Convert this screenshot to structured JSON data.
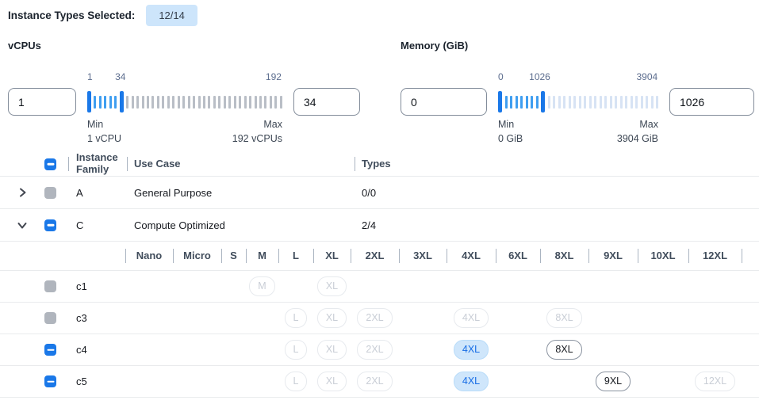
{
  "header": {
    "label": "Instance Types Selected:",
    "badge": "12/14"
  },
  "colors": {
    "accent_blue": "#1a78e8",
    "badge_bg": "#cde5fb",
    "selected_pill_bg": "#cfe6fb",
    "selected_pill_text": "#176de5",
    "disabled_gray": "#b0b5bd"
  },
  "filters": [
    {
      "id": "vcpus",
      "title": "vCPUs",
      "min_value": "1",
      "max_value": "34",
      "min_label": "Min",
      "min_detail": "1 vCPU",
      "max_label": "Max",
      "max_detail": "192 vCPUs",
      "scale_labels": [
        {
          "text": "1",
          "pos": 0
        },
        {
          "text": "34",
          "pos": 17
        },
        {
          "text": "192",
          "pos": 95.5
        }
      ],
      "slider": {
        "total_ticks": 38,
        "handle_low": 0,
        "handle_high": 6,
        "in_range_color": "#3f9ef0",
        "out_range_color": "#b9bec6"
      }
    },
    {
      "id": "memory",
      "title": "Memory (GiB)",
      "min_value": "0",
      "max_value": "1026",
      "min_label": "Min",
      "min_detail": "0 GiB",
      "max_label": "Max",
      "max_detail": "3904 GiB",
      "scale_labels": [
        {
          "text": "0",
          "pos": 0
        },
        {
          "text": "1026",
          "pos": 26
        },
        {
          "text": "3904",
          "pos": 93
        }
      ],
      "slider": {
        "total_ticks": 31,
        "handle_low": 0,
        "handle_high": 8,
        "in_range_color": "#3f9ef0",
        "out_range_color": "#d7e3f4"
      }
    }
  ],
  "table": {
    "columns": {
      "family": "Instance Family",
      "use_case": "Use Case",
      "types": "Types"
    },
    "header_checkbox": "indeterminate",
    "sizes": [
      "Nano",
      "Micro",
      "S",
      "M",
      "L",
      "XL",
      "2XL",
      "3XL",
      "4XL",
      "6XL",
      "8XL",
      "9XL",
      "10XL",
      "12XL"
    ],
    "families": [
      {
        "name": "A",
        "use_case": "General Purpose",
        "types": "0/0",
        "expanded": false,
        "checkbox": "disabled",
        "instances": []
      },
      {
        "name": "C",
        "use_case": "Compute Optimized",
        "types": "2/4",
        "expanded": true,
        "checkbox": "indeterminate",
        "instances": [
          {
            "name": "c1",
            "checkbox": "disabled",
            "pills": [
              {
                "size": "M",
                "state": "disabled"
              },
              {
                "size": "XL",
                "state": "disabled"
              }
            ]
          },
          {
            "name": "c3",
            "checkbox": "disabled",
            "pills": [
              {
                "size": "L",
                "state": "disabled"
              },
              {
                "size": "XL",
                "state": "disabled"
              },
              {
                "size": "2XL",
                "state": "disabled"
              },
              {
                "size": "4XL",
                "state": "disabled"
              },
              {
                "size": "8XL",
                "state": "disabled"
              }
            ]
          },
          {
            "name": "c4",
            "checkbox": "indeterminate",
            "pills": [
              {
                "size": "L",
                "state": "disabled"
              },
              {
                "size": "XL",
                "state": "disabled"
              },
              {
                "size": "2XL",
                "state": "disabled"
              },
              {
                "size": "4XL",
                "state": "selected"
              },
              {
                "size": "8XL",
                "state": "available"
              }
            ]
          },
          {
            "name": "c5",
            "checkbox": "indeterminate",
            "pills": [
              {
                "size": "L",
                "state": "disabled"
              },
              {
                "size": "XL",
                "state": "disabled"
              },
              {
                "size": "2XL",
                "state": "disabled"
              },
              {
                "size": "4XL",
                "state": "selected"
              },
              {
                "size": "9XL",
                "state": "available"
              },
              {
                "size": "12XL",
                "state": "disabled"
              }
            ]
          }
        ]
      }
    ]
  }
}
